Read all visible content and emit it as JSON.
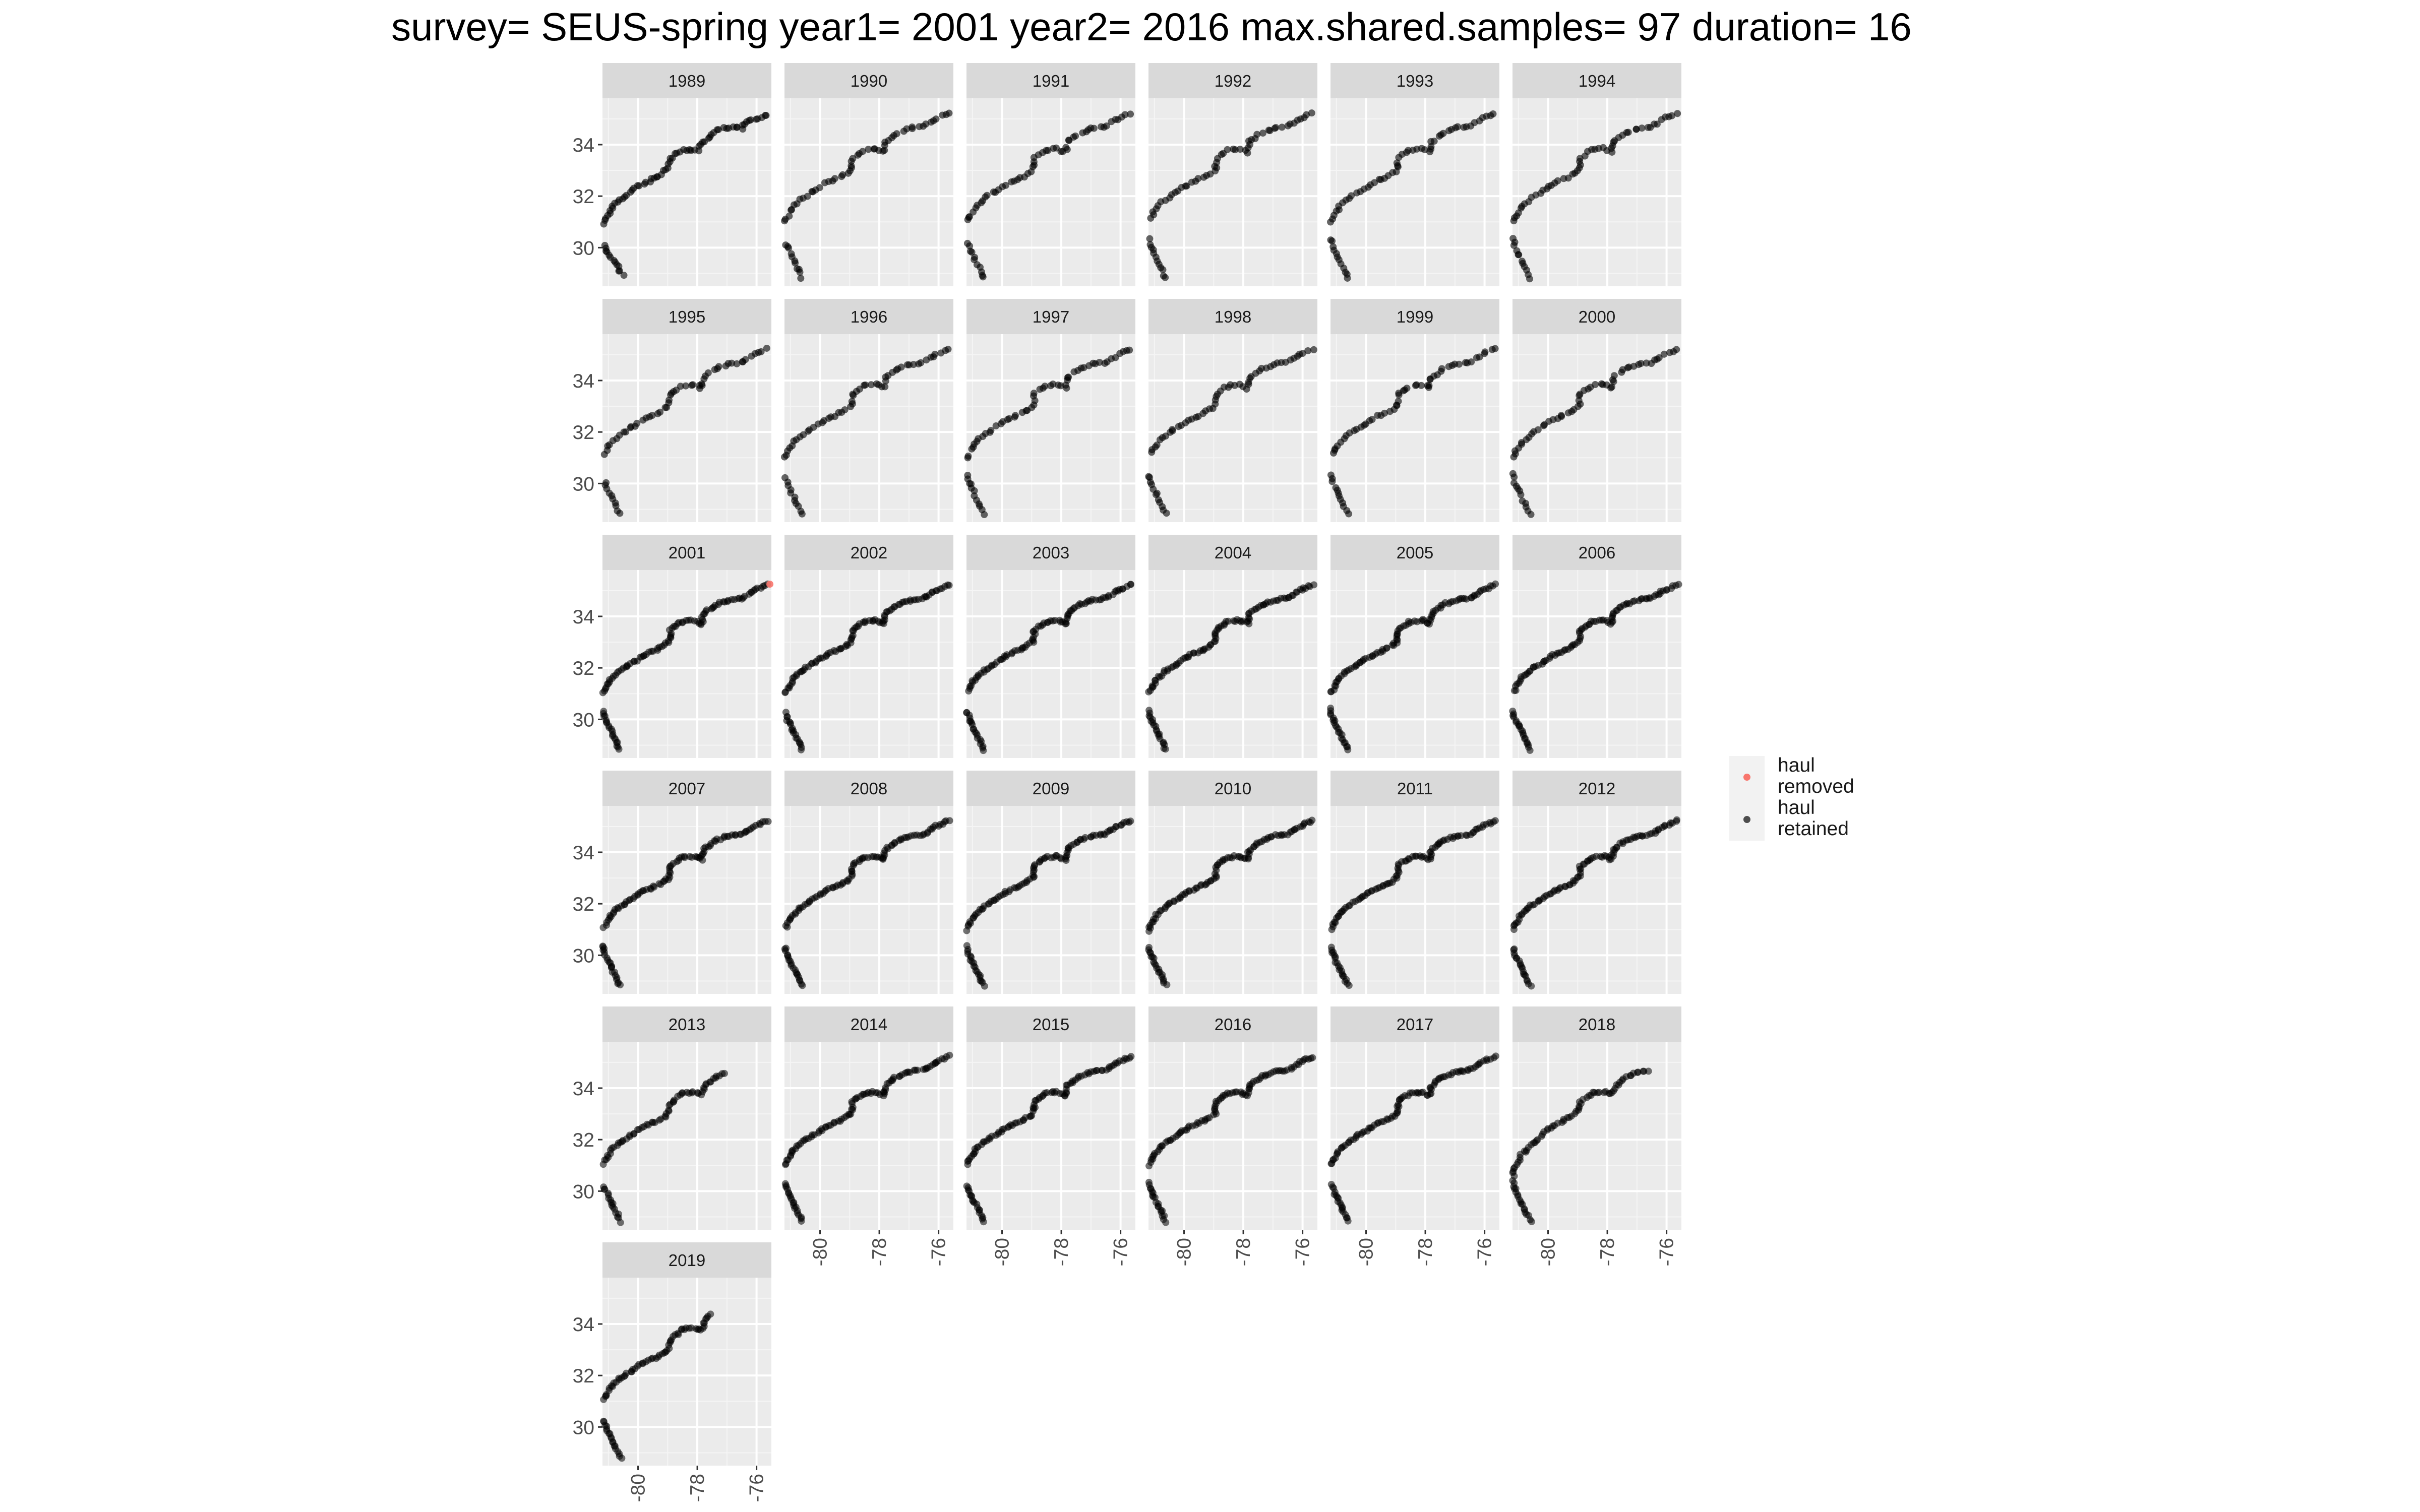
{
  "title": "survey= SEUS-spring year1= 2001 year2= 2016 max.shared.samples= 97 duration= 16",
  "chart_data": {
    "type": "scatter",
    "facet_variable": "year",
    "facets": [
      "1989",
      "1990",
      "1991",
      "1992",
      "1993",
      "1994",
      "1995",
      "1996",
      "1997",
      "1998",
      "1999",
      "2000",
      "2001",
      "2002",
      "2003",
      "2004",
      "2005",
      "2006",
      "2007",
      "2008",
      "2009",
      "2010",
      "2011",
      "2012",
      "2013",
      "2014",
      "2015",
      "2016",
      "2017",
      "2018",
      "2019"
    ],
    "x_ticks": [
      "-80",
      "-78",
      "-76"
    ],
    "y_ticks": [
      "30",
      "32",
      "34"
    ],
    "xlim": [
      -81.2,
      -75.5
    ],
    "ylim": [
      28.5,
      35.8
    ],
    "grid": true,
    "legend_position": "right",
    "colors": {
      "removed": "#f8766d",
      "retained": "#000000",
      "panel_bg": "#ebebeb",
      "strip_bg": "#d9d9d9"
    },
    "series": [
      {
        "name": "haul removed",
        "color": "#f8766d",
        "points": [
          {
            "facet": "2001",
            "x": -75.55,
            "y": 35.25
          }
        ]
      },
      {
        "name": "haul retained",
        "color": "#000000",
        "coastline_track": [
          [
            -80.6,
            28.8
          ],
          [
            -80.85,
            29.4
          ],
          [
            -81.1,
            30.0
          ],
          [
            -81.25,
            30.5
          ],
          [
            -81.3,
            30.8
          ],
          [
            -81.1,
            31.2
          ],
          [
            -80.9,
            31.6
          ],
          [
            -80.6,
            31.9
          ],
          [
            -80.2,
            32.2
          ],
          [
            -79.8,
            32.5
          ],
          [
            -79.3,
            32.75
          ],
          [
            -78.95,
            33.0
          ],
          [
            -78.9,
            33.5
          ],
          [
            -78.5,
            33.8
          ],
          [
            -78.1,
            33.85
          ],
          [
            -77.85,
            33.7
          ],
          [
            -77.8,
            34.1
          ],
          [
            -77.4,
            34.45
          ],
          [
            -76.9,
            34.65
          ],
          [
            -76.5,
            34.7
          ],
          [
            -76.1,
            35.0
          ],
          [
            -75.6,
            35.25
          ]
        ],
        "facet_points": {
          "1989": [
            [
              -80.5,
              28.9
            ],
            [
              -80.7,
              29.3
            ],
            [
              -80.9,
              29.6
            ],
            [
              -81.3,
              30.4
            ],
            [
              -81.2,
              30.9
            ],
            [
              -81.0,
              31.3
            ],
            [
              -80.8,
              31.7
            ],
            [
              -80.5,
              31.9
            ],
            [
              -80.2,
              32.2
            ],
            [
              -80.0,
              32.4
            ],
            [
              -79.6,
              32.6
            ],
            [
              -79.3,
              32.8
            ],
            [
              -79.0,
              33.1
            ],
            [
              -78.95,
              33.3
            ],
            [
              -78.8,
              33.6
            ],
            [
              -78.5,
              33.8
            ],
            [
              -78.0,
              33.75
            ],
            [
              -77.9,
              34.0
            ],
            [
              -77.3,
              34.6
            ],
            [
              -76.8,
              34.7
            ],
            [
              -76.5,
              34.6
            ],
            [
              -76.3,
              34.95
            ],
            [
              -76.0,
              35.0
            ],
            [
              -75.6,
              35.2
            ]
          ],
          "2013": [
            [
              -80.55,
              28.8
            ],
            [
              -80.8,
              29.3
            ],
            [
              -81.0,
              29.8
            ],
            [
              -81.25,
              30.4
            ],
            [
              -81.3,
              30.8
            ],
            [
              -81.1,
              31.2
            ],
            [
              -80.9,
              31.6
            ],
            [
              -80.6,
              31.9
            ],
            [
              -80.2,
              32.2
            ],
            [
              -79.8,
              32.5
            ],
            [
              -79.3,
              32.75
            ],
            [
              -79.0,
              33.0
            ],
            [
              -78.9,
              33.4
            ],
            [
              -78.5,
              33.8
            ],
            [
              -78.1,
              33.85
            ],
            [
              -77.85,
              33.75
            ],
            [
              -77.75,
              34.1
            ],
            [
              -77.4,
              34.4
            ],
            [
              -77.0,
              34.6
            ]
          ],
          "2018": [
            [
              -80.55,
              28.8
            ],
            [
              -80.8,
              29.3
            ],
            [
              -81.1,
              30.0
            ],
            [
              -81.2,
              30.5
            ],
            [
              -81.1,
              31.0
            ],
            [
              -80.9,
              31.4
            ],
            [
              -80.0,
              32.4
            ],
            [
              -79.7,
              32.6
            ],
            [
              -79.4,
              32.8
            ],
            [
              -79.0,
              33.1
            ],
            [
              -78.9,
              33.5
            ],
            [
              -78.5,
              33.8
            ],
            [
              -78.1,
              33.85
            ],
            [
              -77.85,
              33.75
            ],
            [
              -77.7,
              34.1
            ],
            [
              -77.4,
              34.4
            ],
            [
              -77.0,
              34.6
            ],
            [
              -76.6,
              34.7
            ]
          ],
          "2019": [
            [
              -80.55,
              28.8
            ],
            [
              -80.8,
              29.3
            ],
            [
              -81.0,
              29.8
            ],
            [
              -81.25,
              30.4
            ],
            [
              -81.3,
              30.8
            ],
            [
              -81.1,
              31.2
            ],
            [
              -80.9,
              31.6
            ],
            [
              -80.6,
              31.9
            ],
            [
              -80.2,
              32.2
            ],
            [
              -79.8,
              32.5
            ],
            [
              -79.3,
              32.75
            ],
            [
              -79.0,
              33.0
            ],
            [
              -78.9,
              33.4
            ],
            [
              -78.5,
              33.8
            ],
            [
              -78.1,
              33.85
            ],
            [
              -77.85,
              33.75
            ],
            [
              -77.75,
              34.1
            ],
            [
              -77.6,
              34.3
            ],
            [
              -77.5,
              34.4
            ]
          ]
        }
      }
    ]
  },
  "legend": {
    "items": [
      {
        "label": "haul\nremoved",
        "color": "#f8766d"
      },
      {
        "label": "haul\nretained",
        "color": "#4d4d4d"
      }
    ]
  }
}
